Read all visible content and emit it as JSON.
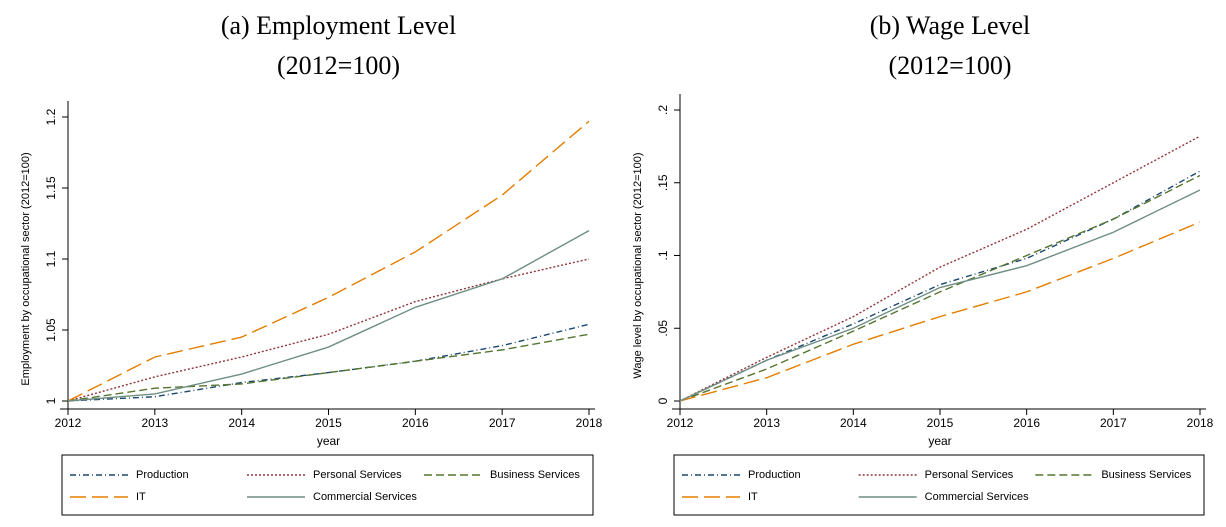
{
  "chart_data": [
    {
      "type": "line",
      "title": "(a) Employment Level",
      "subtitle": "(2012=100)",
      "xlabel": "year",
      "ylabel": "Employment by occupational sector (2012=100)",
      "x": [
        2012,
        2013,
        2014,
        2015,
        2016,
        2017,
        2018
      ],
      "xlim": [
        2012,
        2018
      ],
      "xticks": [
        2012,
        2013,
        2014,
        2015,
        2016,
        2017,
        2018
      ],
      "ylim": [
        1,
        1.2
      ],
      "yticks": [
        1,
        1.05,
        1.1,
        1.15,
        1.2
      ],
      "legend": "bottom",
      "series": [
        {
          "name": "Production",
          "color": "#1a476f",
          "values": [
            1.0,
            1.003,
            1.013,
            1.02,
            1.028,
            1.039,
            1.054
          ]
        },
        {
          "name": "Personal Services",
          "color": "#90353b",
          "values": [
            1.0,
            1.017,
            1.031,
            1.047,
            1.07,
            1.086,
            1.1
          ]
        },
        {
          "name": "Business Services",
          "color": "#55752f",
          "values": [
            1.0,
            1.009,
            1.012,
            1.02,
            1.028,
            1.036,
            1.047
          ]
        },
        {
          "name": "IT",
          "color": "#e37e00",
          "values": [
            1.0,
            1.031,
            1.045,
            1.073,
            1.105,
            1.145,
            1.197
          ]
        },
        {
          "name": "Commercial Services",
          "color": "#6e8e84",
          "values": [
            1.0,
            1.005,
            1.019,
            1.038,
            1.066,
            1.086,
            1.12
          ]
        }
      ]
    },
    {
      "type": "line",
      "title": "(b) Wage Level",
      "subtitle": "(2012=100)",
      "xlabel": "year",
      "ylabel": "Wage level by occupational sector (2012=100)",
      "x": [
        2012,
        2013,
        2014,
        2015,
        2016,
        2017,
        2018
      ],
      "xlim": [
        2012,
        2018
      ],
      "xticks": [
        2012,
        2013,
        2014,
        2015,
        2016,
        2017,
        2018
      ],
      "ylim": [
        0,
        0.2
      ],
      "yticks": [
        0,
        {
          "value": 0.05,
          "label": ".05"
        },
        {
          "value": 0.1,
          "label": ".1"
        },
        {
          "value": 0.15,
          "label": ".15"
        },
        {
          "value": 0.2,
          "label": ".2"
        }
      ],
      "legend": "bottom",
      "series": [
        {
          "name": "Production",
          "color": "#1a476f",
          "values": [
            0,
            0.028,
            0.053,
            0.08,
            0.098,
            0.125,
            0.158
          ]
        },
        {
          "name": "Personal Services",
          "color": "#90353b",
          "values": [
            0,
            0.03,
            0.058,
            0.092,
            0.118,
            0.15,
            0.182
          ]
        },
        {
          "name": "Business Services",
          "color": "#55752f",
          "values": [
            0,
            0.022,
            0.048,
            0.075,
            0.1,
            0.125,
            0.155
          ]
        },
        {
          "name": "IT",
          "color": "#e37e00",
          "values": [
            0,
            0.016,
            0.039,
            0.058,
            0.075,
            0.098,
            0.123
          ]
        },
        {
          "name": "Commercial Services",
          "color": "#6e8e84",
          "values": [
            0,
            0.028,
            0.05,
            0.078,
            0.093,
            0.116,
            0.145
          ]
        }
      ]
    }
  ]
}
